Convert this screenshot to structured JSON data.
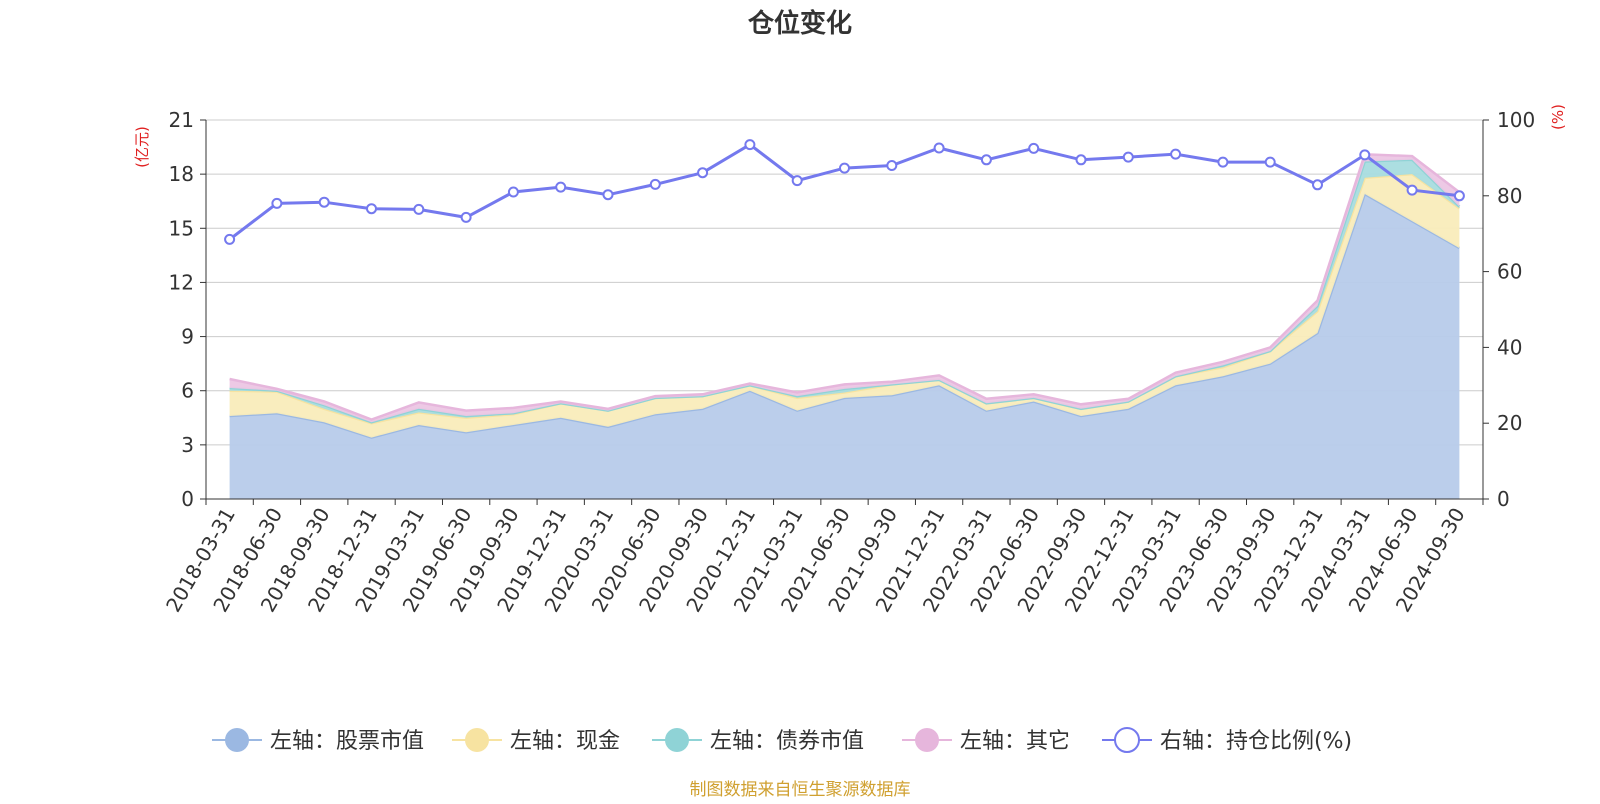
{
  "chart_data": {
    "type": "area",
    "title": "仓位变化",
    "left_axis_unit": "(亿元)",
    "right_axis_unit": "(%)",
    "left_ylim": [
      0,
      21
    ],
    "left_ticks": [
      "0",
      "3",
      "6",
      "9",
      "12",
      "15",
      "18",
      "21"
    ],
    "right_ylim": [
      0,
      100
    ],
    "right_ticks": [
      "0",
      "20",
      "40",
      "60",
      "80",
      "100"
    ],
    "grid": true,
    "legend_position": "bottom",
    "categories_all": [
      "2018-03-31",
      "2018-06-30",
      "2018-09-30",
      "2018-12-31",
      "2019-03-31",
      "2019-06-30",
      "2019-09-30",
      "2019-12-31",
      "2020-03-31",
      "2020-06-30",
      "2020-09-30",
      "2020-12-31",
      "2021-03-31",
      "2021-06-30",
      "2021-09-30",
      "2021-12-31",
      "2022-03-31",
      "2022-06-30",
      "2022-09-30",
      "2022-12-31",
      "2023-03-31",
      "2023-06-30",
      "2023-09-30",
      "2023-12-31",
      "2024-03-31",
      "2024-06-30",
      "2024-09-30"
    ],
    "series": [
      {
        "name": "左轴：股票市值",
        "axis": "left",
        "color": "#9bb8e2",
        "fill": "#b7cbea",
        "values": [
          4.6,
          4.75,
          4.25,
          3.4,
          4.1,
          3.7,
          4.1,
          4.5,
          4.0,
          4.7,
          5.0,
          6.0,
          4.9,
          5.6,
          5.75,
          6.3,
          4.9,
          5.4,
          4.6,
          5.0,
          6.3,
          6.8,
          7.5,
          9.2,
          16.9,
          15.4,
          13.9
        ]
      },
      {
        "name": "左轴：现金",
        "axis": "left",
        "color": "#f7e3a1",
        "fill": "#f9ecbb",
        "values": [
          1.4,
          1.2,
          0.75,
          0.8,
          0.7,
          0.8,
          0.6,
          0.8,
          0.9,
          0.9,
          0.7,
          0.3,
          0.7,
          0.3,
          0.6,
          0.3,
          0.4,
          0.2,
          0.4,
          0.4,
          0.5,
          0.5,
          0.7,
          1.2,
          0.9,
          2.6,
          2.2
        ]
      },
      {
        "name": "左轴：债券市值",
        "axis": "left",
        "color": "#8fd3d6",
        "fill": "#a8dcdf",
        "values": [
          0.15,
          0.05,
          0.2,
          0.05,
          0.2,
          0.1,
          0.05,
          0.0,
          0.0,
          0.0,
          0.0,
          0.0,
          0.1,
          0.2,
          0.0,
          0.0,
          0.0,
          0.0,
          0.0,
          0.0,
          0.0,
          0.1,
          0.0,
          0.3,
          0.9,
          0.8,
          0.1
        ]
      },
      {
        "name": "左轴：其它",
        "axis": "left",
        "color": "#e6b6dc",
        "fill": "#ecc6e4",
        "values": [
          0.5,
          0.1,
          0.2,
          0.15,
          0.35,
          0.3,
          0.3,
          0.1,
          0.1,
          0.1,
          0.1,
          0.1,
          0.2,
          0.25,
          0.15,
          0.25,
          0.25,
          0.2,
          0.25,
          0.15,
          0.2,
          0.2,
          0.2,
          0.3,
          0.4,
          0.2,
          0.8
        ]
      },
      {
        "name": "右轴：持仓比例(%)",
        "axis": "right",
        "color": "#7479ee",
        "values": [
          68.5,
          78.0,
          78.3,
          76.6,
          76.4,
          74.3,
          81.0,
          82.3,
          80.3,
          83.0,
          86.1,
          93.5,
          84.0,
          87.3,
          88.0,
          92.6,
          89.5,
          92.5,
          89.5,
          90.2,
          91.0,
          88.9,
          88.9,
          82.9,
          90.8,
          81.5,
          80.0
        ]
      }
    ],
    "footer": "制图数据来自恒生聚源数据库"
  }
}
